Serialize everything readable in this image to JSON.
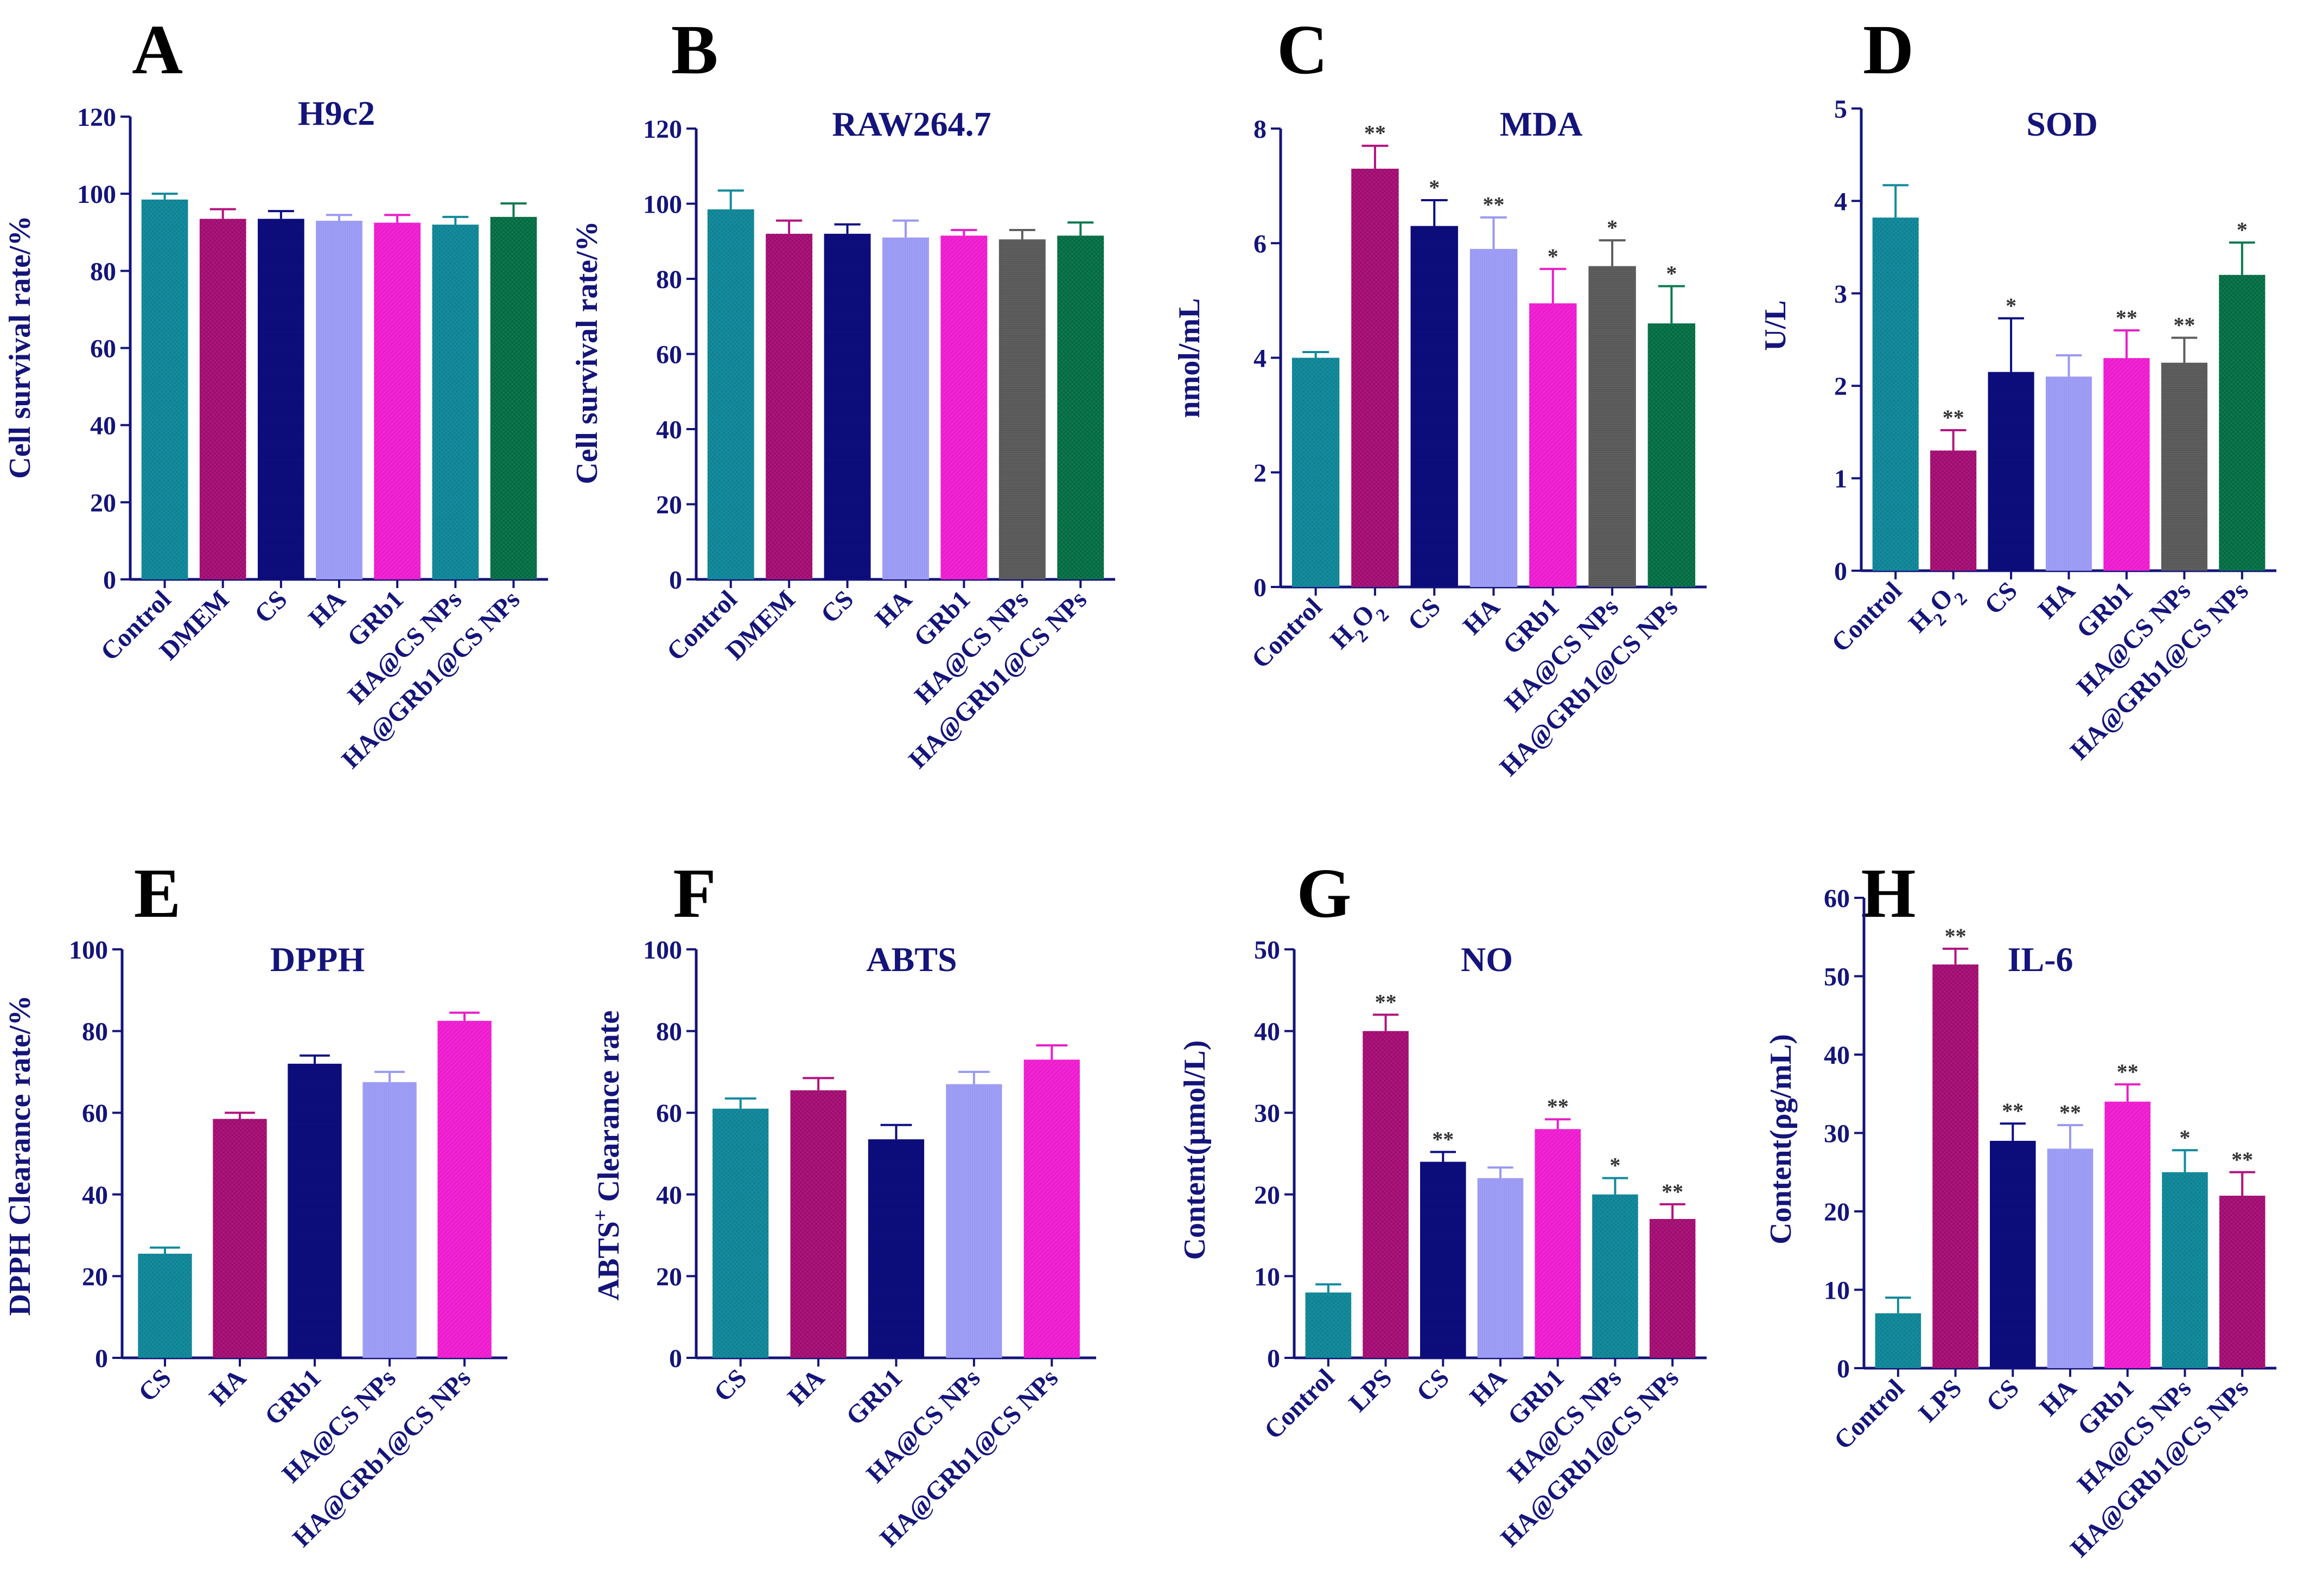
{
  "colors": {
    "axis": "#14147a",
    "text": "#14147a",
    "panel_letter": "#000000",
    "teal": "#138a9c",
    "magenta": "#b3137f",
    "navy": "#0d0d80",
    "lavender": "#9a99f2",
    "pink": "#e81fc8",
    "gray": "#5f5f5f",
    "green": "#0a7a4e",
    "sig": "#333333"
  },
  "chart_data": [
    {
      "panel": "A",
      "type": "bar",
      "title": "H9c2",
      "ylabel": "Cell survival rate/%",
      "ylim": [
        0,
        120
      ],
      "yticks": [
        0,
        20,
        40,
        60,
        80,
        100,
        120
      ],
      "categories": [
        "Control",
        "DMEM",
        "CS",
        "HA",
        "GRb1",
        "HA@CS NPs",
        "HA@GRb1@CS NPs"
      ],
      "values": [
        98.5,
        93.5,
        93.5,
        93,
        92.5,
        92,
        94
      ],
      "errors": [
        1.5,
        2.5,
        2,
        1.5,
        2,
        2,
        3.5
      ],
      "colors": [
        "teal",
        "magenta",
        "navy",
        "lavender",
        "pink",
        "teal",
        "green"
      ],
      "significance": [
        "",
        "",
        "",
        "",
        "",
        "",
        ""
      ]
    },
    {
      "panel": "B",
      "type": "bar",
      "title": "RAW264.7",
      "ylabel": "Cell survival rate/%",
      "ylim": [
        0,
        120
      ],
      "yticks": [
        0,
        20,
        40,
        60,
        80,
        100,
        120
      ],
      "categories": [
        "Control",
        "DMEM",
        "CS",
        "HA",
        "GRb1",
        "HA@CS NPs",
        "HA@GRb1@CS NPs"
      ],
      "values": [
        98.5,
        92,
        92,
        91,
        91.5,
        90.5,
        91.5
      ],
      "errors": [
        5,
        3.5,
        2.5,
        4.5,
        1.5,
        2.5,
        3.5
      ],
      "colors": [
        "teal",
        "magenta",
        "navy",
        "lavender",
        "pink",
        "gray",
        "green"
      ],
      "significance": [
        "",
        "",
        "",
        "",
        "",
        "",
        ""
      ]
    },
    {
      "panel": "C",
      "type": "bar",
      "title": "MDA",
      "ylabel": "nmol/mL",
      "ylim": [
        0,
        8
      ],
      "yticks": [
        0,
        2,
        4,
        6,
        8
      ],
      "categories": [
        "Control",
        "H₂O₂",
        "CS",
        "HA",
        "GRb1",
        "HA@CS NPs",
        "HA@GRb1@CS NPs"
      ],
      "values": [
        4.0,
        7.3,
        6.3,
        5.9,
        4.95,
        5.6,
        4.6
      ],
      "errors": [
        0.1,
        0.4,
        0.45,
        0.55,
        0.6,
        0.45,
        0.65
      ],
      "colors": [
        "teal",
        "magenta",
        "navy",
        "lavender",
        "pink",
        "gray",
        "green"
      ],
      "significance": [
        "",
        "**",
        "*",
        "**",
        "*",
        "*",
        "*"
      ]
    },
    {
      "panel": "D",
      "type": "bar",
      "title": "SOD",
      "ylabel": "U/L",
      "ylim": [
        0,
        5
      ],
      "yticks": [
        0,
        1,
        2,
        3,
        4,
        5
      ],
      "categories": [
        "Control",
        "H₂O₂",
        "CS",
        "HA",
        "GRb1",
        "HA@CS NPs",
        "HA@GRb1@CS NPs"
      ],
      "values": [
        3.82,
        1.3,
        2.15,
        2.1,
        2.3,
        2.25,
        3.2
      ],
      "errors": [
        0.35,
        0.22,
        0.58,
        0.23,
        0.3,
        0.27,
        0.35
      ],
      "colors": [
        "teal",
        "magenta",
        "navy",
        "lavender",
        "pink",
        "gray",
        "green"
      ],
      "significance": [
        "",
        "**",
        "*",
        "",
        "**",
        "**",
        "*"
      ]
    },
    {
      "panel": "E",
      "type": "bar",
      "title": "DPPH",
      "ylabel": "DPPH Clearance rate/%",
      "ylim": [
        0,
        100
      ],
      "yticks": [
        0,
        20,
        40,
        60,
        80,
        100
      ],
      "categories": [
        "CS",
        "HA",
        "GRb1",
        "HA@CS NPs",
        "HA@GRb1@CS NPs"
      ],
      "values": [
        25.5,
        58.5,
        72,
        67.5,
        82.5
      ],
      "errors": [
        1.5,
        1.5,
        2,
        2.5,
        2
      ],
      "colors": [
        "teal",
        "magenta",
        "navy",
        "lavender",
        "pink"
      ],
      "significance": [
        "",
        "",
        "",
        "",
        ""
      ]
    },
    {
      "panel": "F",
      "type": "bar",
      "title": "ABTS",
      "ylabel": "ABTS+ Clearance rate",
      "ylim": [
        0,
        100
      ],
      "yticks": [
        0,
        20,
        40,
        60,
        80,
        100
      ],
      "categories": [
        "CS",
        "HA",
        "GRb1",
        "HA@CS NPs",
        "HA@GRb1@CS NPs"
      ],
      "values": [
        61,
        65.5,
        53.5,
        67,
        73
      ],
      "errors": [
        2.5,
        3,
        3.5,
        3,
        3.5
      ],
      "colors": [
        "teal",
        "magenta",
        "navy",
        "lavender",
        "pink"
      ],
      "significance": [
        "",
        "",
        "",
        "",
        ""
      ]
    },
    {
      "panel": "G",
      "type": "bar",
      "title": "NO",
      "ylabel": "Content(μmol/L)",
      "ylim": [
        0,
        50
      ],
      "yticks": [
        0,
        10,
        20,
        30,
        40,
        50
      ],
      "categories": [
        "Control",
        "LPS",
        "CS",
        "HA",
        "GRb1",
        "HA@CS NPs",
        "HA@GRb1@CS NPs"
      ],
      "values": [
        8,
        40,
        24,
        22,
        28,
        20,
        17
      ],
      "errors": [
        1,
        2,
        1.2,
        1.3,
        1.2,
        2,
        1.8
      ],
      "colors": [
        "teal",
        "magenta",
        "navy",
        "lavender",
        "pink",
        "teal",
        "magenta"
      ],
      "significance": [
        "",
        "**",
        "**",
        "",
        "**",
        "*",
        "**"
      ]
    },
    {
      "panel": "H",
      "type": "bar",
      "title": "IL-6",
      "ylabel": "Content(ρg/mL)",
      "ylim": [
        0,
        60
      ],
      "yticks": [
        0,
        10,
        20,
        30,
        40,
        50,
        60
      ],
      "categories": [
        "Control",
        "LPS",
        "CS",
        "HA",
        "GRb1",
        "HA@CS NPs",
        "HA@GRb1@CS NPs"
      ],
      "values": [
        7,
        51.5,
        29,
        28,
        34,
        25,
        22
      ],
      "errors": [
        2,
        2,
        2.2,
        3,
        2.2,
        2.8,
        3
      ],
      "colors": [
        "teal",
        "magenta",
        "navy",
        "lavender",
        "pink",
        "teal",
        "magenta"
      ],
      "significance": [
        "",
        "**",
        "**",
        "**",
        "**",
        "*",
        "**"
      ]
    }
  ]
}
